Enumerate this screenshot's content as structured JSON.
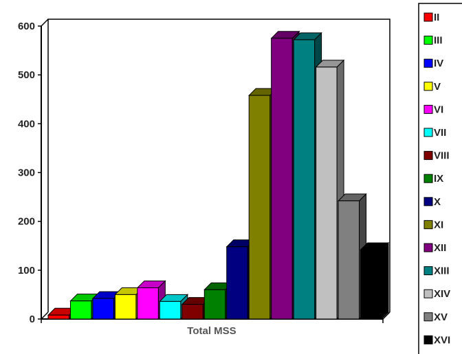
{
  "chart_data": {
    "type": "bar",
    "categories": [
      "Total MSS"
    ],
    "xlabel": "Total MSS",
    "ylabel": "",
    "ylim": [
      0,
      600
    ],
    "yticks": [
      0,
      100,
      200,
      300,
      400,
      500,
      600
    ],
    "grid": false,
    "legend_position": "right",
    "series": [
      {
        "name": "II",
        "values": [
          8
        ],
        "color": "#ff0000"
      },
      {
        "name": "III",
        "values": [
          37
        ],
        "color": "#00ff00"
      },
      {
        "name": "IV",
        "values": [
          42
        ],
        "color": "#0000ff"
      },
      {
        "name": "V",
        "values": [
          50
        ],
        "color": "#ffff00"
      },
      {
        "name": "VI",
        "values": [
          64
        ],
        "color": "#ff00ff"
      },
      {
        "name": "VII",
        "values": [
          36
        ],
        "color": "#00ffff"
      },
      {
        "name": "VIII",
        "values": [
          30
        ],
        "color": "#800000"
      },
      {
        "name": "IX",
        "values": [
          60
        ],
        "color": "#008000"
      },
      {
        "name": "X",
        "values": [
          148
        ],
        "color": "#000080"
      },
      {
        "name": "XI",
        "values": [
          458
        ],
        "color": "#808000"
      },
      {
        "name": "XII",
        "values": [
          575
        ],
        "color": "#800080"
      },
      {
        "name": "XIII",
        "values": [
          572
        ],
        "color": "#008080"
      },
      {
        "name": "XIV",
        "values": [
          516
        ],
        "color": "#c0c0c0"
      },
      {
        "name": "XV",
        "values": [
          242
        ],
        "color": "#808080"
      },
      {
        "name": "XVI",
        "values": [
          142
        ],
        "color": "#000000"
      }
    ]
  }
}
